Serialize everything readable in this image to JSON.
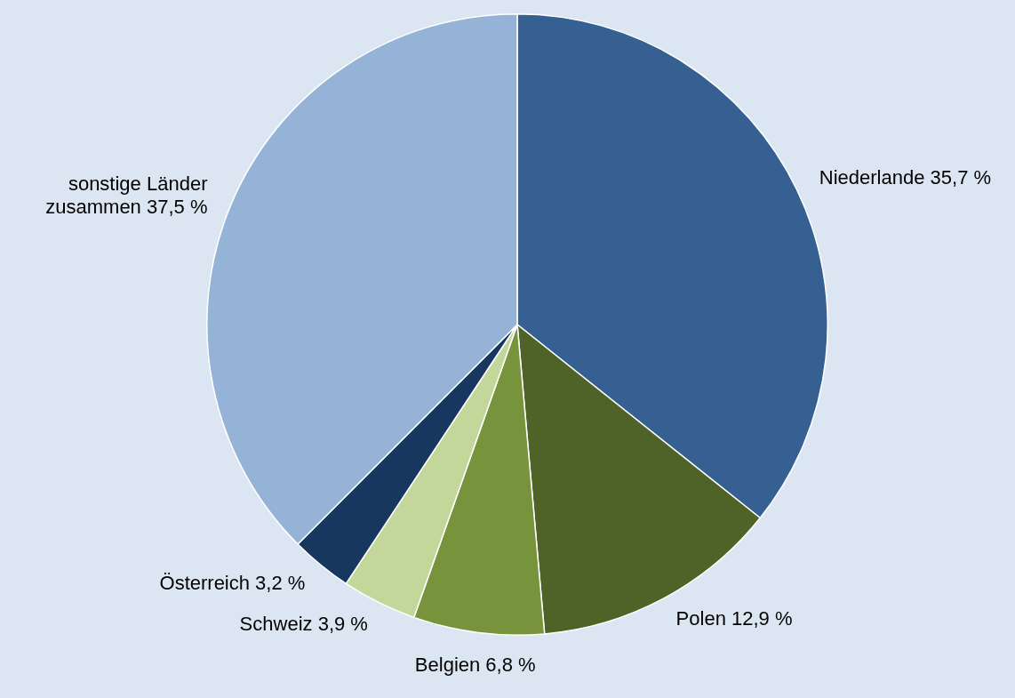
{
  "chart_data": {
    "type": "pie",
    "categories": [
      "Niederlande",
      "Polen",
      "Belgien",
      "Schweiz",
      "Österreich",
      "sonstige Länder zusammen"
    ],
    "values": [
      35.7,
      12.9,
      6.8,
      3.9,
      3.2,
      37.5
    ],
    "value_labels": [
      "35,7 %",
      "12,9 %",
      "6,8 %",
      "3,9 %",
      "3,2 %",
      "37,5 %"
    ],
    "colors": [
      "#366092",
      "#4f6228",
      "#77933c",
      "#c4d79b",
      "#17375e",
      "#95b3d7"
    ],
    "legend": false
  }
}
